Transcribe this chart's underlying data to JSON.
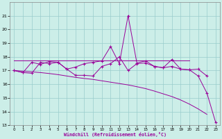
{
  "xlabel": "Windchill (Refroidissement éolien,°C)",
  "x": [
    0,
    1,
    2,
    3,
    4,
    5,
    6,
    7,
    8,
    9,
    10,
    11,
    12,
    13,
    14,
    15,
    16,
    17,
    18,
    19,
    20,
    21,
    22,
    23
  ],
  "line_main": [
    17.0,
    16.85,
    16.8,
    17.6,
    17.5,
    17.6,
    17.1,
    16.65,
    16.65,
    16.6,
    17.3,
    17.5,
    18.0,
    17.0,
    17.5,
    17.55,
    17.3,
    17.2,
    17.3,
    17.1,
    17.05,
    16.6,
    15.35,
    13.2
  ],
  "line_zigzag": [
    17.0,
    16.85,
    17.6,
    17.45,
    17.65,
    17.6,
    17.1,
    17.25,
    17.5,
    17.6,
    17.7,
    18.75,
    17.5,
    21.0,
    17.55,
    17.7,
    17.3,
    17.2,
    17.8,
    17.1,
    17.05,
    17.1,
    16.6,
    null
  ],
  "line_flat": [
    17.75,
    17.75,
    17.75,
    17.75,
    17.75,
    17.75,
    17.75,
    17.75,
    17.75,
    17.75,
    17.75,
    17.75,
    17.75,
    17.75,
    17.75,
    17.75,
    17.75,
    17.75,
    17.75,
    17.75,
    17.75,
    null,
    null,
    null
  ],
  "line_trend": [
    17.0,
    16.95,
    16.9,
    16.85,
    16.78,
    16.7,
    16.6,
    16.5,
    16.42,
    16.35,
    16.25,
    16.15,
    16.05,
    15.95,
    15.82,
    15.68,
    15.5,
    15.3,
    15.1,
    14.85,
    14.55,
    14.2,
    13.8,
    null
  ],
  "bg_color": "#cceee8",
  "grid_color": "#99cccc",
  "line_color": "#990099",
  "ylim": [
    13,
    22
  ],
  "ytick_min": 13,
  "ytick_max": 21,
  "xlim_min": -0.5,
  "xlim_max": 23.5
}
